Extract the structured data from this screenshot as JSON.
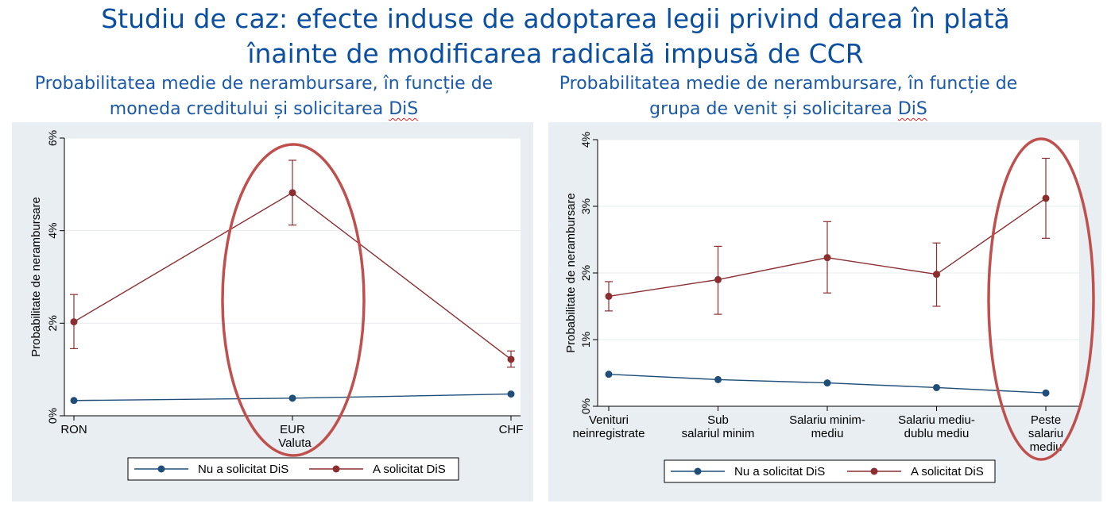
{
  "page": {
    "title_line1": "Studiu de caz: efecte induse de adoptarea legii privind darea în plată",
    "title_line2": "înainte de modificarea radicală impusă de CCR"
  },
  "chart_data": [
    {
      "type": "line",
      "title_line1": "Probabilitatea medie de nerambursare, în funcție de",
      "title_line2_prefix": "moneda creditului și solicitarea ",
      "title_line2_suffix": "DiS",
      "ylabel": "Probabilitate de nerambursare",
      "xlabel": "Valuta",
      "categories": [
        "RON",
        "EUR",
        "CHF"
      ],
      "ylim": [
        0,
        6
      ],
      "yticks": [
        0,
        2,
        4,
        6
      ],
      "ytick_labels": [
        "0%",
        "2%",
        "4%",
        "6%"
      ],
      "grid": true,
      "legend_position": "bottom",
      "series": [
        {
          "name": "Nu a solicitat DiS",
          "color": "#1f4e79",
          "values": [
            0.33,
            0.38,
            0.47
          ]
        },
        {
          "name": "A solicitat DiS",
          "color": "#8b2e30",
          "values": [
            2.03,
            4.82,
            1.22
          ],
          "ci_low": [
            1.45,
            4.12,
            1.05
          ],
          "ci_high": [
            2.62,
            5.52,
            1.4
          ]
        }
      ],
      "annotation": {
        "shape": "ellipse",
        "color": "#c0504d",
        "highlights": "EUR"
      }
    },
    {
      "type": "line",
      "title_line1": "Probabilitatea medie de nerambursare, în funcție de",
      "title_line2_prefix": "grupa de venit și solicitarea ",
      "title_line2_suffix": "DiS",
      "ylabel": "Probabilitate de nerambursare",
      "xlabel": "",
      "categories": [
        [
          "Venituri",
          "neinregistrate"
        ],
        [
          "Sub",
          "salariul minim"
        ],
        [
          "Salariu minim-",
          "mediu"
        ],
        [
          "Salariu mediu-",
          "dublu mediu"
        ],
        [
          "Peste",
          "salariu",
          "mediu"
        ]
      ],
      "ylim": [
        0,
        4
      ],
      "yticks": [
        0,
        1,
        2,
        3,
        4
      ],
      "ytick_labels": [
        "0%",
        "1%",
        "2%",
        "3%",
        "4%"
      ],
      "grid": true,
      "legend_position": "bottom",
      "series": [
        {
          "name": "Nu a solicitat DiS",
          "color": "#1f4e79",
          "values": [
            0.48,
            0.4,
            0.35,
            0.28,
            0.2
          ]
        },
        {
          "name": "A solicitat DiS",
          "color": "#8b2e30",
          "values": [
            1.65,
            1.9,
            2.23,
            1.98,
            3.12
          ],
          "ci_low": [
            1.43,
            1.38,
            1.7,
            1.5,
            2.52
          ],
          "ci_high": [
            1.87,
            2.4,
            2.77,
            2.45,
            3.72
          ]
        }
      ],
      "annotation": {
        "shape": "ellipse",
        "color": "#c0504d",
        "highlights": "Peste salariu mediu"
      }
    }
  ]
}
